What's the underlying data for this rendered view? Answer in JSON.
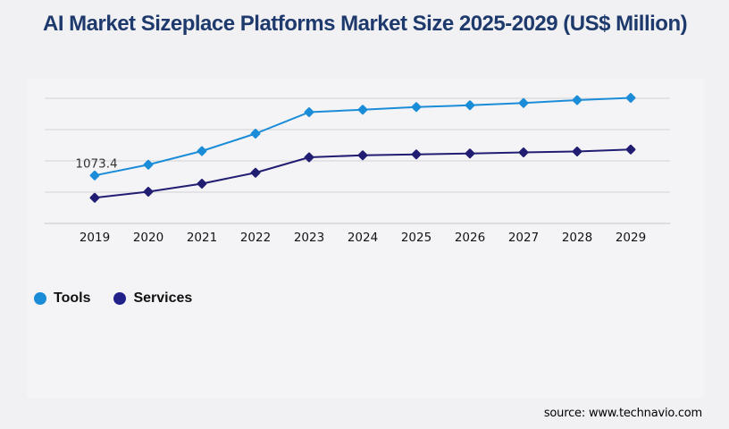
{
  "page": {
    "background": "#f1f1f4"
  },
  "header": {
    "title": "AI Market Sizeplace Platforms Market Size 2025-2029 (US$ Million)",
    "title_color": "#1e3a6d"
  },
  "footer": {
    "source": "source: www.technavio.com"
  },
  "legend": {
    "items": [
      {
        "label": "Tools",
        "color": "#1a8cd8"
      },
      {
        "label": "Services",
        "color": "#22218c"
      }
    ]
  },
  "chart_data": {
    "type": "line",
    "title": "AI Market Sizeplace Platforms Market Size 2025-2029 (US$ Million)",
    "x": [
      2019,
      2020,
      2021,
      2022,
      2023,
      2024,
      2025,
      2026,
      2027,
      2028,
      2029
    ],
    "series": [
      {
        "name": "Tools",
        "color": "#1a8cd8",
        "marker": "diamond",
        "values": [
          1073.4,
          1315,
          1620,
          2010,
          2490,
          2545,
          2605,
          2645,
          2695,
          2760,
          2810
        ]
      },
      {
        "name": "Services",
        "color": "#211d72",
        "marker": "diamond",
        "values": [
          575,
          710,
          890,
          1135,
          1480,
          1525,
          1545,
          1565,
          1590,
          1610,
          1655
        ]
      }
    ],
    "point_labels": [
      {
        "series_index": 0,
        "x_index": 0,
        "text": "1073.4"
      }
    ],
    "xlabel": "",
    "ylabel": "",
    "ylim": [
      0,
      2800
    ],
    "gridline_values": [
      0,
      700,
      1400,
      2100,
      2800
    ],
    "grid": "horizontal",
    "legend_position": "bottom-left",
    "axis_text_color": "#141414",
    "point_label_color": "#333333",
    "gridline_color": "#d2d2d7",
    "axisline_color": "#c6c6cb"
  }
}
